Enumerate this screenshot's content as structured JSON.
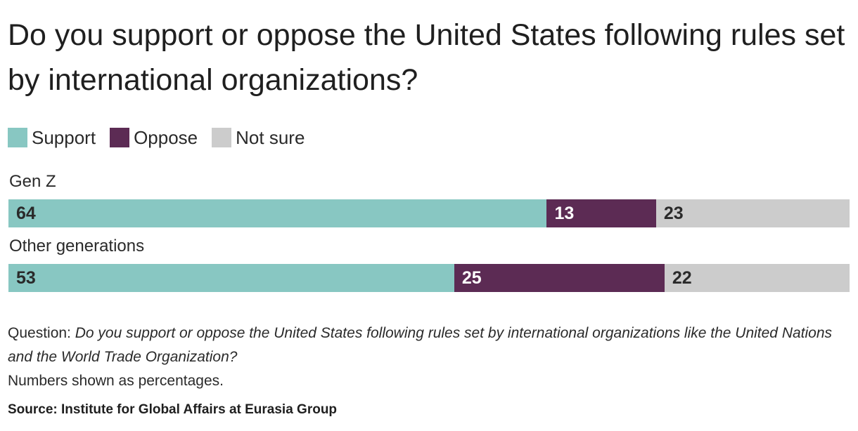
{
  "chart_data": {
    "type": "bar",
    "orientation": "horizontal",
    "stacked": true,
    "title": "Do you support or oppose the United States following rules set by international organizations?",
    "categories": [
      "Gen Z",
      "Other generations"
    ],
    "series": [
      {
        "name": "Support",
        "values": [
          64,
          53
        ],
        "color": "#88c7c2",
        "label_color": "#2a2a2a"
      },
      {
        "name": "Oppose",
        "values": [
          13,
          25
        ],
        "color": "#5c2b54",
        "label_color": "#ffffff"
      },
      {
        "name": "Not sure",
        "values": [
          23,
          22
        ],
        "color": "#cccccc",
        "label_color": "#2a2a2a"
      }
    ],
    "xlim": [
      0,
      100
    ],
    "legend_position": "top-left",
    "grid": false
  },
  "footnote": {
    "question_prefix": "Question: ",
    "question_text": "Do you support or oppose the United States following rules set by international organizations like the United Nations and the World Trade Organization?",
    "units": "Numbers shown as percentages.",
    "source": "Source: Institute for Global Affairs at Eurasia Group"
  }
}
